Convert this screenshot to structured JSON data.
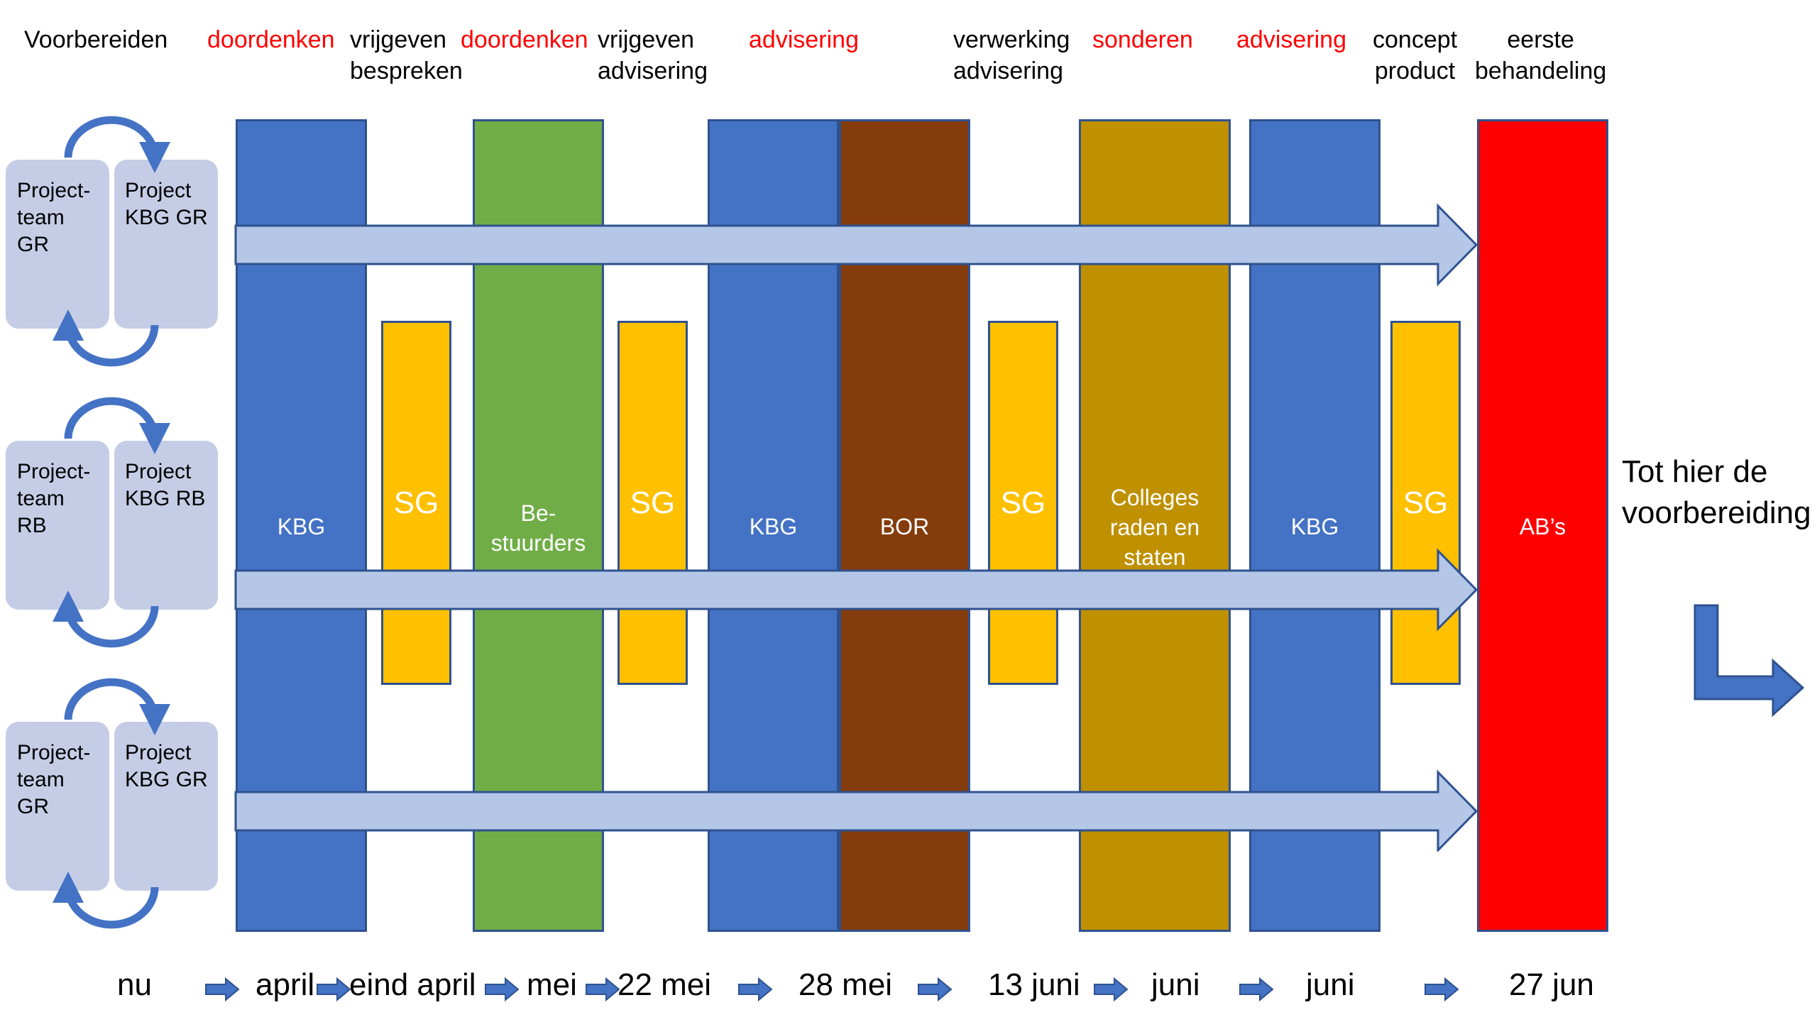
{
  "colors": {
    "kbg": "#4472c4",
    "sg": "#ffc000",
    "bestuurders": "#70ad47",
    "bor": "#843c0c",
    "colleges": "#bf9000",
    "abs": "#ff0000",
    "flow_arrow": "#b4c7e7",
    "outline": "#2f528f",
    "team_box": "#c5cde6",
    "cycle_arrow": "#4472c4",
    "phase_red": "#ff0000"
  },
  "phases": [
    {
      "text": "Voorbereiden",
      "red": false
    },
    {
      "text": "doordenken",
      "red": true
    },
    {
      "text": "vrijgeven\nbespreken",
      "red": false
    },
    {
      "text": "doordenken",
      "red": true
    },
    {
      "text": "vrijgeven\nadvisering",
      "red": false
    },
    {
      "text": "advisering",
      "red": true
    },
    {
      "text": "verwerking\nadvisering",
      "red": false
    },
    {
      "text": "sonderen",
      "red": true
    },
    {
      "text": "advisering",
      "red": true
    },
    {
      "text": "concept\nproduct",
      "red": false
    },
    {
      "text": "eerste\nbehandeling",
      "red": false
    }
  ],
  "teams": [
    {
      "left": "Project-\nteam\nGR",
      "right": "Project\nKBG GR"
    },
    {
      "left": "Project-\nteam\nRB",
      "right": "Project\nKBG RB"
    },
    {
      "left": "Project-\nteam\nGR",
      "right": "Project\nKBG GR"
    }
  ],
  "pillars": [
    {
      "label": "KBG",
      "color_key": "kbg"
    },
    {
      "label": "Be-\nstuurders",
      "color_key": "bestuurders"
    },
    {
      "label": "KBG",
      "color_key": "kbg"
    },
    {
      "label": "BOR",
      "color_key": "bor"
    },
    {
      "label": "Colleges\nraden en\nstaten",
      "color_key": "colleges"
    },
    {
      "label": "KBG",
      "color_key": "kbg"
    },
    {
      "label": "AB’s",
      "color_key": "abs"
    }
  ],
  "sg_label": "SG",
  "sg_count": 4,
  "note": "Tot hier de\nvoorbereiding",
  "timeline": [
    "nu",
    "april",
    "eind april",
    "mei",
    "22 mei",
    "28 mei",
    "13 juni",
    "juni",
    "juni",
    "27 jun"
  ]
}
